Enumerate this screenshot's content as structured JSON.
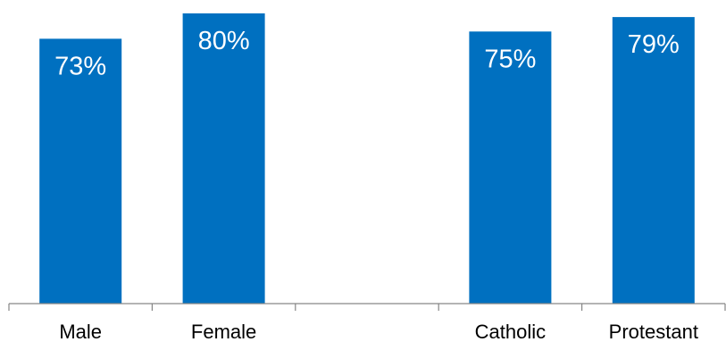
{
  "chart_data": {
    "type": "bar",
    "categories": [
      "Male",
      "Female",
      "",
      "Catholic",
      "Protestant"
    ],
    "values": [
      73,
      80,
      null,
      75,
      79
    ],
    "labels": [
      "73%",
      "80%",
      "",
      "75%",
      "79%"
    ],
    "ylim": [
      0,
      80
    ],
    "grid": false,
    "legend": "none",
    "color": "#0070c0"
  }
}
